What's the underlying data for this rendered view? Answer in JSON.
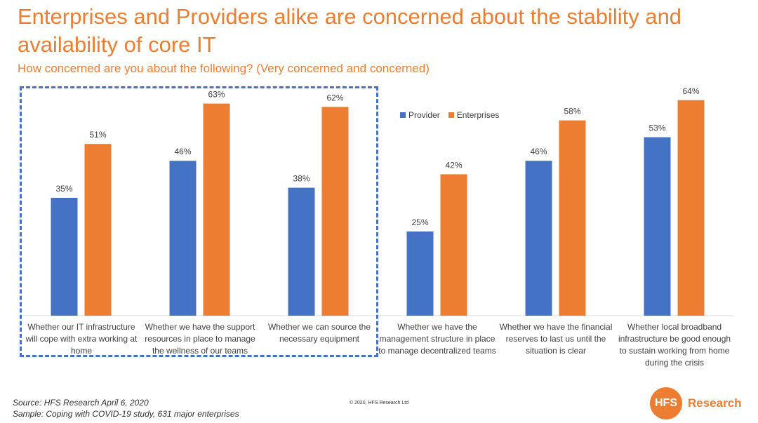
{
  "slide": {
    "title": "Enterprises and Providers alike are concerned about the stability and availability of core IT",
    "subtitle": "How concerned are you about the following? (Very concerned and concerned)",
    "source": "Source: HFS Research April 6, 2020",
    "sample": "Sample: Coping with COVID-19 study, 631 major enterprises",
    "copyright": "© 2020, HFS Research Ltd",
    "logo_mark": "HFS",
    "logo_text": "Research"
  },
  "chart_data": {
    "type": "bar",
    "categories": [
      "Whether our IT infrastructure will cope with extra working at home",
      "Whether we have the support resources in place to manage the wellness of our teams",
      "Whether we can source the necessary equipment",
      "Whether we have the management structure in place to manage decentralized teams",
      "Whether we have the financial reserves to last us until the situation is clear",
      "Whether local broadband infrastructure be good enough to sustain working from home during the crisis"
    ],
    "series": [
      {
        "name": "Provider",
        "values": [
          35,
          46,
          38,
          25,
          46,
          53
        ],
        "labels": [
          "35%",
          "46%",
          "38%",
          "25%",
          "46%",
          "53%"
        ],
        "color": "#4472C4"
      },
      {
        "name": "Enterprises",
        "values": [
          51,
          63,
          62,
          42,
          58,
          64
        ],
        "labels": [
          "51%",
          "63%",
          "62%",
          "42%",
          "58%",
          "64%"
        ],
        "color": "#ED7D31"
      }
    ],
    "ylim": [
      0,
      70
    ],
    "legend_position": "top",
    "grid": false,
    "highlighted_categories": [
      0,
      1,
      2
    ]
  }
}
